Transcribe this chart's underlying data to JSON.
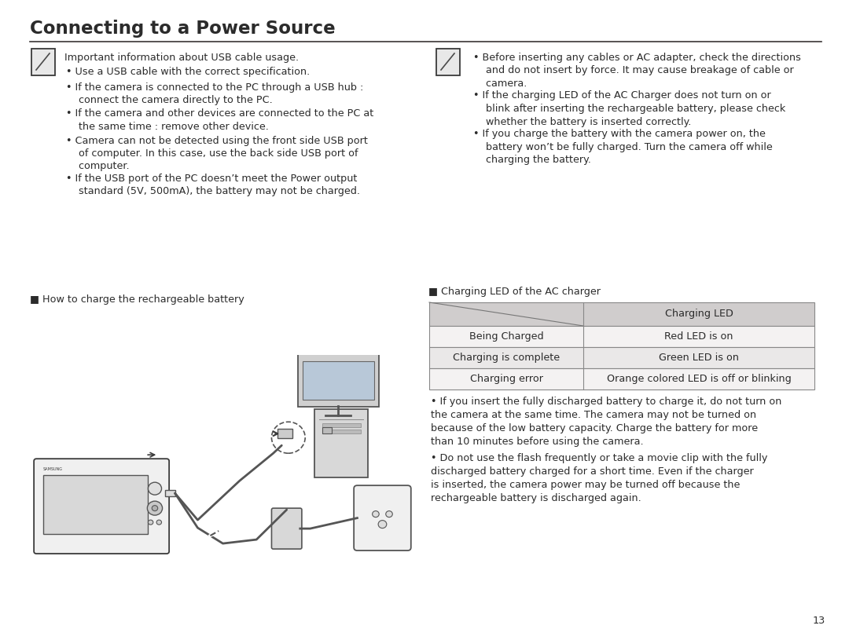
{
  "title": "Connecting to a Power Source",
  "title_fontsize": 16.5,
  "title_color": "#2b2b2b",
  "bg_color": "#ffffff",
  "text_color": "#2b2b2b",
  "body_fontsize": 9.2,
  "line_color": "#3a3535",
  "left_bullets": [
    "Important information about USB cable usage.",
    "Use a USB cable with the correct specification.",
    "If the camera is connected to the PC through a USB hub :\n    connect the camera directly to the PC.",
    "If the camera and other devices are connected to the PC at\n    the same time : remove other device.",
    "Camera can not be detected using the front side USB port\n    of computer. In this case, use the back side USB port of\n    computer.",
    "If the USB port of the PC doesn’t meet the Power output\n    standard (5V, 500mA), the battery may not be charged."
  ],
  "right_bullets_1": [
    "Before inserting any cables or AC adapter, check the directions\n    and do not insert by force. It may cause breakage of cable or\n    camera.",
    "If the charging LED of the AC Charger does not turn on or\n    blink after inserting the rechargeable battery, please check\n    whether the battery is inserted correctly.",
    "If you charge the battery with the camera power on, the\n    battery won’t be fully charged. Turn the camera off while\n    charging the battery."
  ],
  "table_label": "■ Charging LED of the AC charger",
  "table_header_col2": "Charging LED",
  "table_rows": [
    [
      "Being Charged",
      "Red LED is on"
    ],
    [
      "Charging is complete",
      "Green LED is on"
    ],
    [
      "Charging error",
      "Orange colored LED is off or blinking"
    ]
  ],
  "table_header_bg": "#d0cdcd",
  "table_row_bg1": "#eae8e8",
  "table_row_bg2": "#f4f2f2",
  "right_bullets_2": [
    "If you insert the fully discharged battery to charge it, do not turn on\nthe camera at the same time. The camera may not be turned on\nbecause of the low battery capacity. Charge the battery for more\nthan 10 minutes before using the camera.",
    "Do not use the flash frequently or take a movie clip with the fully\ndischarged battery charged for a short time. Even if the charger\nis inserted, the camera power may be turned off because the\nrechargeable battery is discharged again."
  ],
  "battery_label": "■ How to charge the rechargeable battery",
  "page_number": "13"
}
